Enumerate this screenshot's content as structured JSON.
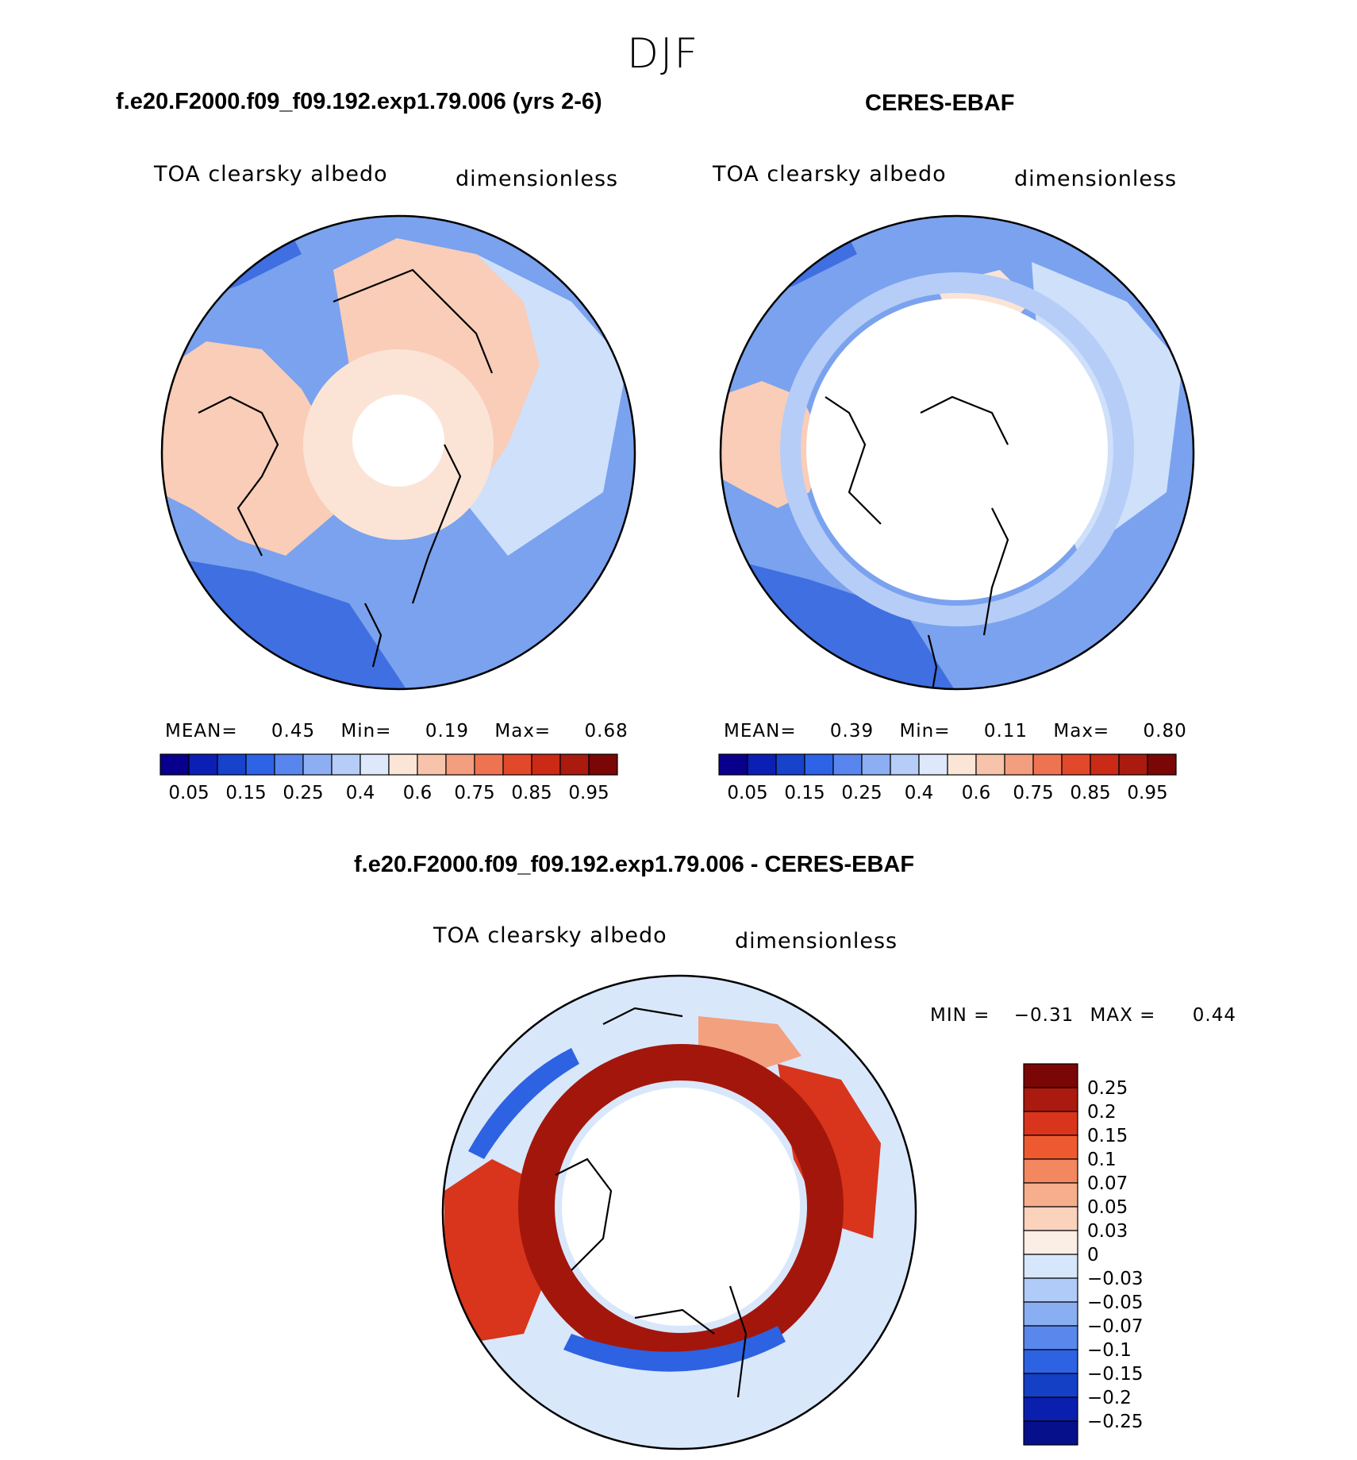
{
  "figure": {
    "season": "DJF",
    "variable": "TOA clearsky albedo",
    "units": "dimensionless"
  },
  "panels": [
    {
      "title": "f.e20.F2000.f09_f09.192.exp1.79.006 (yrs 2-6)",
      "stats": {
        "mean_label": "MEAN=",
        "mean": "0.45",
        "min_label": "Min=",
        "min": "0.19",
        "max_label": "Max=",
        "max": "0.68"
      },
      "colorbar_ticks": [
        "0.05",
        "0.15",
        "0.25",
        "0.4",
        "0.6",
        "0.75",
        "0.85",
        "0.95"
      ],
      "colorbar_colors": [
        "#08008c",
        "#0c1fb4",
        "#1642cc",
        "#2d63e6",
        "#5886ee",
        "#8eaef4",
        "#b6cdf8",
        "#dde9fb",
        "#fbe5d6",
        "#f7c4ab",
        "#f39e7e",
        "#ee7451",
        "#e2482a",
        "#cb2a16",
        "#ab1a0e",
        "#7a0606"
      ]
    },
    {
      "title": "CERES-EBAF",
      "stats": {
        "mean_label": "MEAN=",
        "mean": "0.39",
        "min_label": "Min=",
        "min": "0.11",
        "max_label": "Max=",
        "max": "0.80"
      },
      "colorbar_ticks": [
        "0.05",
        "0.15",
        "0.25",
        "0.4",
        "0.6",
        "0.75",
        "0.85",
        "0.95"
      ],
      "colorbar_colors": [
        "#08008c",
        "#0c1fb4",
        "#1642cc",
        "#2d63e6",
        "#5886ee",
        "#8eaef4",
        "#b6cdf8",
        "#dde9fb",
        "#fbe5d6",
        "#f7c4ab",
        "#f39e7e",
        "#ee7451",
        "#e2482a",
        "#cb2a16",
        "#ab1a0e",
        "#7a0606"
      ]
    },
    {
      "title": "f.e20.F2000.f09_f09.192.exp1.79.006 - CERES-EBAF",
      "stats": {
        "min_label": "MIN =",
        "min": "−0.31",
        "max_label": "MAX =",
        "max": "0.44"
      },
      "colorbar_ticks": [
        "0.25",
        "0.2",
        "0.15",
        "0.1",
        "0.07",
        "0.05",
        "0.03",
        "0",
        "−0.03",
        "−0.05",
        "−0.07",
        "−0.1",
        "−0.15",
        "−0.2",
        "−0.25"
      ],
      "colorbar_colors": [
        "#7a0606",
        "#ab1a0e",
        "#d8351c",
        "#ee5a30",
        "#f3875f",
        "#f7ae8c",
        "#fbd2bc",
        "#fbeee4",
        "#d6e6fb",
        "#b0cbf7",
        "#89aef2",
        "#5a87ec",
        "#2d62e3",
        "#1440c6",
        "#0b1fae",
        "#06108a"
      ]
    }
  ],
  "map_colors": {
    "ocean_dark": "#3f6fe0",
    "ocean_mid": "#7aa2ee",
    "ocean_light": "#cfe0fa",
    "land_warm": "#f9cdb8",
    "land_pale": "#fbe4d6",
    "diff_bg": "#d9e7fb",
    "diff_red": "#d8351c",
    "diff_dark_red": "#a3160c",
    "diff_blue": "#2d62e3",
    "diff_light_red": "#f3a07e"
  }
}
